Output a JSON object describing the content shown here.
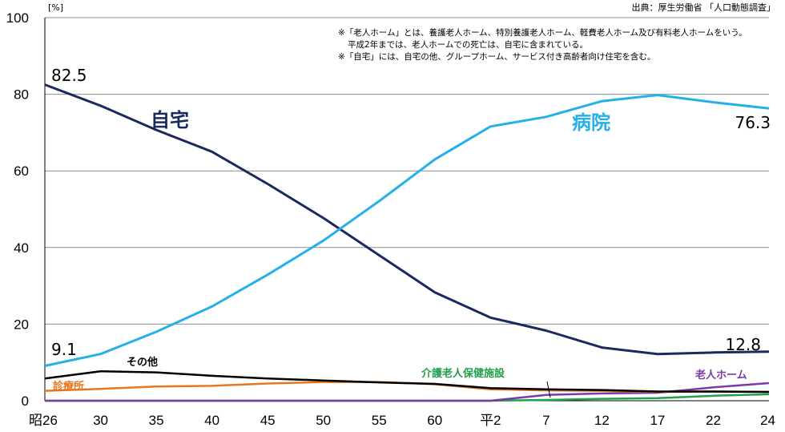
{
  "chart_data": {
    "type": "line",
    "ylabel": "[%]",
    "ylim": [
      0,
      100
    ],
    "yticks": [
      0,
      20,
      40,
      60,
      80,
      100
    ],
    "grid": true,
    "source": "出典：厚生労働省 「人口動態調査」",
    "notes": [
      "※「老人ホーム」とは、養護老人ホーム、特別養護老人ホーム、軽費老人ホーム及び有料老人ホームをいう。",
      "平成2年までは、老人ホームでの死亡は、自宅に含まれている。",
      "※「自宅」には、自宅の他、グループホーム、サービス付き高齢者向け住宅を含む。"
    ],
    "x_labels": [
      "昭26",
      "30",
      "35",
      "40",
      "45",
      "50",
      "55",
      "60",
      "平2",
      "7",
      "12",
      "17",
      "22",
      "24"
    ],
    "series": [
      {
        "name": "自宅",
        "color": "#1b2a5e",
        "values": [
          82.5,
          77.0,
          70.7,
          65.0,
          56.6,
          47.7,
          38.0,
          28.3,
          21.7,
          18.3,
          13.9,
          12.2,
          12.6,
          12.8
        ],
        "start_label": "82.5",
        "end_label": "12.8"
      },
      {
        "name": "病院",
        "color": "#26b0e8",
        "values": [
          9.1,
          12.2,
          18.0,
          24.6,
          32.9,
          41.8,
          52.1,
          63.0,
          71.6,
          74.1,
          78.2,
          79.8,
          77.9,
          76.3
        ],
        "start_label": "9.1",
        "end_label": "76.3"
      },
      {
        "name": "その他",
        "color": "#000000",
        "values": [
          5.8,
          7.7,
          7.4,
          6.5,
          5.8,
          5.3,
          4.8,
          4.4,
          3.3,
          3.0,
          2.8,
          2.4,
          2.4,
          2.3
        ]
      },
      {
        "name": "診療所",
        "color": "#e8761c",
        "values": [
          2.6,
          3.1,
          3.7,
          3.9,
          4.5,
          4.9,
          4.9,
          4.3,
          3.0,
          2.7,
          2.6,
          2.3,
          2.4,
          2.3
        ]
      },
      {
        "name": "介護老人保健施設",
        "color": "#22a04a",
        "values": [
          0,
          0,
          0,
          0,
          0,
          0,
          0,
          0,
          0,
          0.2,
          0.5,
          0.7,
          1.3,
          1.7
        ]
      },
      {
        "name": "老人ホーム",
        "color": "#7a3aa8",
        "values": [
          0,
          0,
          0,
          0,
          0,
          0,
          0,
          0,
          0,
          1.5,
          1.9,
          2.1,
          3.5,
          4.6
        ]
      }
    ]
  }
}
